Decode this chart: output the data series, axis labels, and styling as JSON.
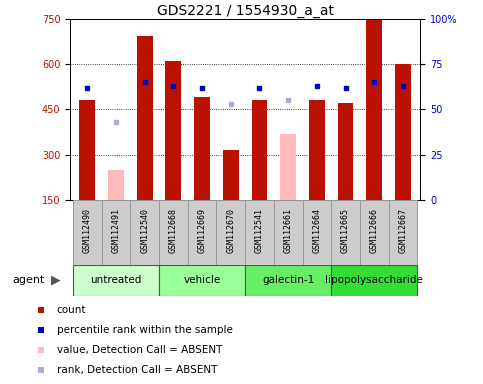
{
  "title": "GDS2221 / 1554930_a_at",
  "samples": [
    "GSM112490",
    "GSM112491",
    "GSM112540",
    "GSM112668",
    "GSM112669",
    "GSM112670",
    "GSM112541",
    "GSM112661",
    "GSM112664",
    "GSM112665",
    "GSM112666",
    "GSM112667"
  ],
  "count_values": [
    480,
    null,
    695,
    610,
    490,
    315,
    480,
    null,
    480,
    470,
    750,
    600
  ],
  "count_absent_values": [
    null,
    250,
    null,
    null,
    null,
    null,
    null,
    370,
    null,
    null,
    null,
    null
  ],
  "rank_values": [
    62,
    null,
    65,
    63,
    62,
    null,
    62,
    null,
    63,
    62,
    65,
    63
  ],
  "rank_absent_values": [
    null,
    43,
    null,
    null,
    null,
    53,
    null,
    55,
    null,
    null,
    null,
    null
  ],
  "ylim_left": [
    150,
    750
  ],
  "ylim_right": [
    0,
    100
  ],
  "yticks_left": [
    150,
    300,
    450,
    600,
    750
  ],
  "yticks_right": [
    0,
    25,
    50,
    75,
    100
  ],
  "agent_groups": [
    {
      "label": "untreated",
      "indices": [
        0,
        1,
        2
      ],
      "color": "#ccffcc"
    },
    {
      "label": "vehicle",
      "indices": [
        3,
        4,
        5
      ],
      "color": "#99ff99"
    },
    {
      "label": "galectin-1",
      "indices": [
        6,
        7,
        8
      ],
      "color": "#66ee66"
    },
    {
      "label": "lipopolysaccharide",
      "indices": [
        9,
        10,
        11
      ],
      "color": "#33dd33"
    }
  ],
  "bar_width": 0.55,
  "count_color": "#bb1100",
  "count_absent_color": "#ffbbbb",
  "rank_color": "#0000cc",
  "rank_absent_color": "#aaaadd",
  "sample_box_color": "#cccccc",
  "sample_box_edge": "#999999",
  "grid_color": "#333333",
  "title_fontsize": 10,
  "tick_fontsize": 7,
  "label_fontsize": 6,
  "legend_fontsize": 7.5,
  "agent_fontsize": 7.5,
  "agent_label_fontsize": 8
}
